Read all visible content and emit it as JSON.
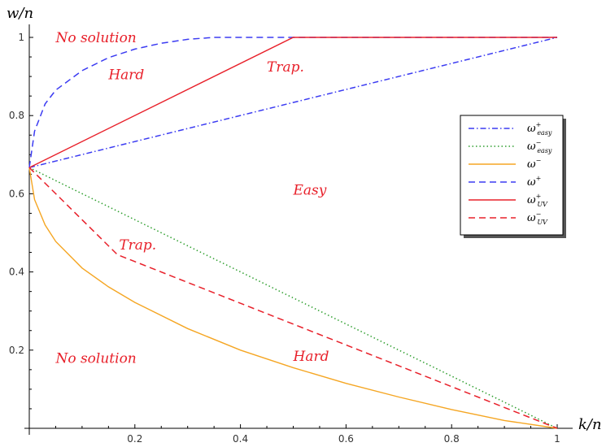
{
  "chart_data": {
    "type": "line",
    "xlabel": "k/n",
    "ylabel": "w/n",
    "xlim": [
      0,
      1
    ],
    "ylim": [
      0,
      1
    ],
    "x_ticks": [
      "0.2",
      "0.4",
      "0.6",
      "0.8",
      "1"
    ],
    "y_ticks": [
      "0.2",
      "0.4",
      "0.6",
      "0.8",
      "1"
    ],
    "grid": false,
    "legend_placement": "right",
    "series": [
      {
        "name": "ω+easy",
        "sym": "ω",
        "sup": "+",
        "sub": "easy",
        "color": "#3b3bf2",
        "dash": "dashdot",
        "x": [
          0,
          1
        ],
        "y": [
          0.667,
          1.0
        ]
      },
      {
        "name": "ω−easy",
        "sym": "ω",
        "sup": "−",
        "sub": "easy",
        "color": "#2e9e2e",
        "dash": "dotted",
        "x": [
          0,
          1
        ],
        "y": [
          0.667,
          0.0
        ]
      },
      {
        "name": "ω−",
        "sym": "ω",
        "sup": "−",
        "sub": "",
        "color": "#f5a623",
        "dash": "solid",
        "x": [
          0,
          0.01,
          0.03,
          0.05,
          0.1,
          0.15,
          0.2,
          0.3,
          0.4,
          0.5,
          0.6,
          0.7,
          0.8,
          0.9,
          1.0
        ],
        "y": [
          0.667,
          0.585,
          0.52,
          0.478,
          0.41,
          0.362,
          0.322,
          0.255,
          0.2,
          0.155,
          0.115,
          0.08,
          0.048,
          0.02,
          0.0
        ]
      },
      {
        "name": "ω+",
        "sym": "ω",
        "sup": "+",
        "sub": "",
        "color": "#3b3bf2",
        "dash": "dashed",
        "x": [
          0,
          0.01,
          0.03,
          0.05,
          0.1,
          0.15,
          0.2,
          0.25,
          0.3,
          0.35,
          0.37,
          1.0
        ],
        "y": [
          0.667,
          0.76,
          0.83,
          0.865,
          0.915,
          0.948,
          0.97,
          0.985,
          0.995,
          1.0,
          1.0,
          1.0
        ]
      },
      {
        "name": "ω+UV",
        "sym": "ω",
        "sup": "+",
        "sub": "UV",
        "color": "#e8202a",
        "dash": "solid",
        "x": [
          0,
          0.5,
          1.0
        ],
        "y": [
          0.667,
          1.0,
          1.0
        ]
      },
      {
        "name": "ω−UV",
        "sym": "ω",
        "sup": "−",
        "sub": "UV",
        "color": "#e8202a",
        "dash": "dashed",
        "x": [
          0,
          0.167,
          1.0
        ],
        "y": [
          0.667,
          0.444,
          0.0
        ]
      }
    ],
    "annotations": [
      {
        "text": "No solution",
        "x": 0.05,
        "y": 1.0
      },
      {
        "text": "Hard",
        "x": 0.15,
        "y": 0.905
      },
      {
        "text": "Trap.",
        "x": 0.45,
        "y": 0.925
      },
      {
        "text": "Easy",
        "x": 0.5,
        "y": 0.61
      },
      {
        "text": "Trap.",
        "x": 0.17,
        "y": 0.47
      },
      {
        "text": "Hard",
        "x": 0.5,
        "y": 0.185
      },
      {
        "text": "No solution",
        "x": 0.05,
        "y": 0.18
      }
    ]
  }
}
